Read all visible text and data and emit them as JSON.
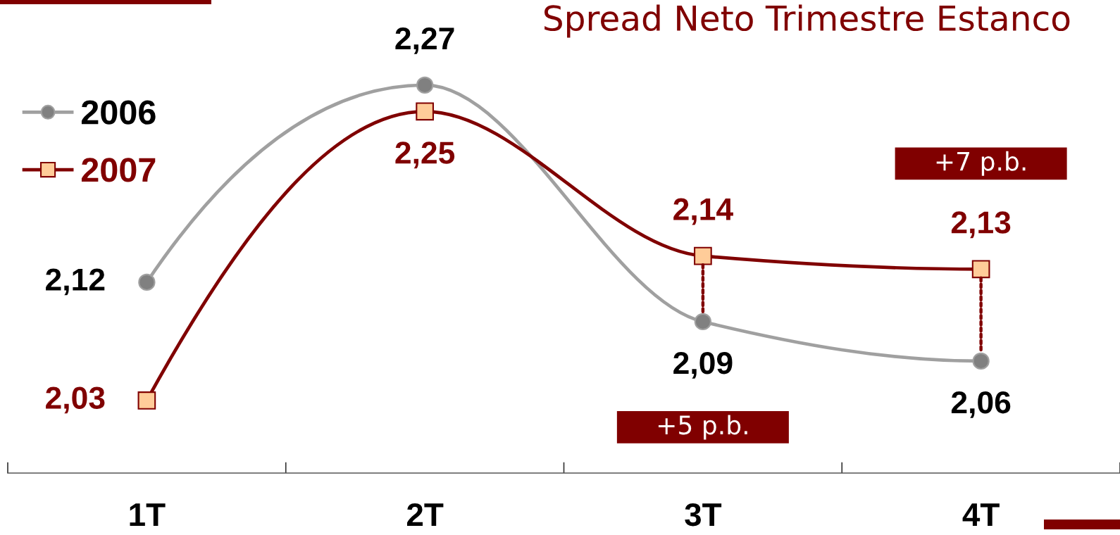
{
  "chart_data": {
    "type": "line",
    "title": "Spread Neto Trimestre Estanco",
    "categories": [
      "1T",
      "2T",
      "3T",
      "4T"
    ],
    "series": [
      {
        "name": "2006",
        "color": "#a0a0a0",
        "colors": [
          "#808080",
          "#808080",
          "#808080",
          "#808080"
        ],
        "marker": "circle",
        "values": [
          2.12,
          2.27,
          2.09,
          2.06
        ],
        "value_labels": [
          "2,12",
          "2,27",
          "2,09",
          "2,06"
        ]
      },
      {
        "name": "2007",
        "color": "#800000",
        "colors": [
          "#ffcc99",
          "#ffcc99",
          "#ffcc99",
          "#ffcc99"
        ],
        "marker": "square",
        "values": [
          2.03,
          2.25,
          2.14,
          2.13
        ],
        "value_labels": [
          "2,03",
          "2,25",
          "2,14",
          "2,13"
        ]
      }
    ],
    "annotations": [
      "+5 p.b.",
      "+7 p.b."
    ],
    "legend": "top left",
    "tick_labels": "x"
  }
}
